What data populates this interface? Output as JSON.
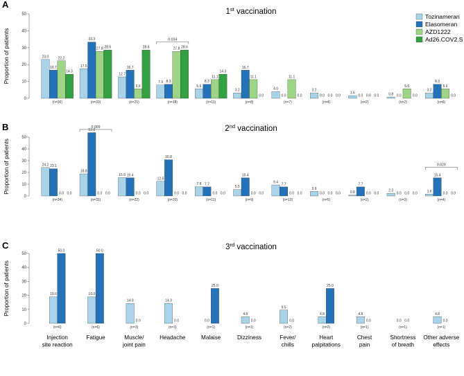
{
  "chart_data": {
    "type": "bar",
    "ylabel": "Proportion of patients",
    "ylim": [
      0,
      50
    ],
    "yticks": [
      0,
      10,
      20,
      30,
      40,
      50
    ],
    "categories": [
      [
        "Injection",
        "site reaction"
      ],
      [
        "Fatigue"
      ],
      [
        "Muscle/",
        "joint pain"
      ],
      [
        "Headache"
      ],
      [
        "Malaise"
      ],
      [
        "Dizziness"
      ],
      [
        "Fever/",
        "chills"
      ],
      [
        "Heart",
        "palpitations"
      ],
      [
        "Chest",
        "pain"
      ],
      [
        "Shortness",
        "of breath"
      ],
      [
        "Other adverse",
        "effects"
      ]
    ],
    "legend": {
      "placement": "top-right",
      "entries": [
        {
          "name": "Tozinameran",
          "color": "#a8d3e8"
        },
        {
          "name": "Elasomeran",
          "color": "#2472b8"
        },
        {
          "name": "AZD1222",
          "color": "#9dd486"
        },
        {
          "name": "Ad26.COV2.S",
          "color": "#35a042"
        }
      ]
    },
    "panels": [
      {
        "letter": "A",
        "title_number": "1",
        "title_sup": "st",
        "title_rest": " vaccination",
        "series": [
          {
            "name": "Tozinameran",
            "values": [
              23.0,
              17.5,
              12.7,
              7.9,
              5.6,
              3.2,
              4.0,
              3.2,
              1.6,
              0.8,
              3.2
            ],
            "labels": [
              "23.0",
              "17.5",
              "12.7",
              "7.9",
              "5.6",
              "3.2",
              "4.0",
              "3.2",
              "1.6",
              "0.8",
              "3.2"
            ]
          },
          {
            "name": "Elasomeran",
            "values": [
              16.7,
              33.3,
              16.7,
              8.3,
              8.3,
              16.7,
              0.0,
              0.0,
              0.0,
              0.0,
              8.3
            ],
            "labels": [
              "16.7",
              "33.3",
              "16.7",
              "8.3",
              "8.3",
              "16.7",
              "0.0",
              "0.0",
              "0.0",
              "0.0",
              "8.3"
            ]
          },
          {
            "name": "AZD1222",
            "values": [
              22.2,
              27.8,
              5.6,
              27.8,
              11.1,
              11.1,
              11.1,
              0.0,
              0.0,
              5.6,
              5.6
            ],
            "labels": [
              "22.2",
              "27.8",
              "5.6",
              "27.8",
              "11.1",
              "11.1",
              "11.1",
              "0.0",
              "0.0",
              "5.6",
              "5.6"
            ]
          },
          {
            "name": "Ad26.COV2.S",
            "values": [
              14.3,
              28.6,
              28.6,
              28.6,
              14.3,
              0.0,
              0.0,
              0.0,
              0.0,
              0.0,
              0.0
            ],
            "labels": [
              "14.3",
              "28.6",
              "28.6",
              "28.6",
              "14.3",
              "0.0",
              "0.0",
              "0.0",
              "0.0",
              "0.0",
              "0.0"
            ]
          }
        ],
        "n_labels": [
          "(n=36)",
          "(n=33)",
          "(n=21)",
          "(n=18)",
          "(n=11)",
          "(n=8)",
          "(n=7)",
          "(n=4)",
          "(n=2)",
          "(n=2)",
          "(n=6)"
        ],
        "significance": [
          {
            "category": 3,
            "from_series": 0,
            "to_series": 3,
            "level": 33.5,
            "label": "0.034"
          }
        ]
      },
      {
        "letter": "B",
        "title_number": "2",
        "title_sup": "nd",
        "title_rest": " vaccination",
        "series": [
          {
            "name": "Tozinameran",
            "values": [
              24.2,
              18.8,
              15.6,
              12.5,
              7.8,
              5.5,
              9.4,
              3.9,
              0.8,
              2.3,
              1.6
            ],
            "labels": [
              "24.2",
              "18.8",
              "15.6",
              "12.5",
              "7.8",
              "5.5",
              "9.4",
              "3.9",
              "0.8",
              "2.3",
              "1.6"
            ]
          },
          {
            "name": "Elasomeran",
            "values": [
              23.1,
              53.8,
              15.4,
              30.8,
              7.7,
              15.4,
              7.7,
              0.0,
              7.7,
              0.0,
              15.4
            ],
            "labels": [
              "23.1",
              "53.8",
              "15.4",
              "30.8",
              "7.7",
              "15.4",
              "7.7",
              "0.0",
              "7.7",
              "0.0",
              "15.4"
            ]
          },
          {
            "name": "AZD1222",
            "values": [
              0.0,
              0.0,
              0.0,
              0.0,
              0.0,
              0.0,
              0.0,
              0.0,
              0.0,
              0.0,
              0.0
            ],
            "labels": [
              "0.0",
              "0.0",
              "0.0",
              "0.0",
              "0.0",
              "0.0",
              "0.0",
              "0.0",
              "0.0",
              "0.0",
              "0.0"
            ]
          },
          {
            "name": "Ad26.COV2.S",
            "values": [
              0.0,
              0.0,
              0.0,
              0.0,
              0.0,
              0.0,
              0.0,
              0.0,
              0.0,
              0.0,
              0.0
            ],
            "labels": [
              "0.0",
              "0.0",
              "0.0",
              "0.0",
              "0.0",
              "0.0",
              "0.0",
              "0.0",
              "0.0",
              "0.0",
              "0.0"
            ]
          }
        ],
        "n_labels": [
          "(n=34)",
          "(n=31)",
          "(n=22)",
          "(n=20)",
          "(n=11)",
          "(n=9)",
          "(n=13)",
          "(n=5)",
          "(n=2)",
          "(n=3)",
          "(n=4)"
        ],
        "significance": [
          {
            "category": 1,
            "from_series": 0,
            "to_series": 3,
            "level": 56.5,
            "label": "0.009"
          },
          {
            "category": 10,
            "from_series": 0,
            "to_series": 3,
            "level": 24.5,
            "label": "0.029"
          }
        ]
      },
      {
        "letter": "C",
        "title_number": "3",
        "title_sup": "rd",
        "title_rest": " vaccination",
        "series": [
          {
            "name": "Tozinameran",
            "values": [
              19.0,
              19.0,
              14.3,
              14.3,
              0.0,
              4.8,
              9.5,
              4.8,
              4.8,
              0.0,
              4.8
            ],
            "labels": [
              "19.0",
              "19.0",
              "14.3",
              "14.3",
              "0.0",
              "4.8",
              "9.5",
              "4.8",
              "4.8",
              "0.0",
              "4.8"
            ]
          },
          {
            "name": "Elasomeran",
            "values": [
              50.0,
              50.0,
              0.0,
              0.0,
              25.0,
              0.0,
              0.0,
              25.0,
              0.0,
              0.0,
              0.0
            ],
            "labels": [
              "50.0",
              "50.0",
              "0.0",
              "0.0",
              "25.0",
              "0.0",
              "0.0",
              "25.0",
              "0.0",
              "0.0",
              "0.0"
            ]
          }
        ],
        "n_labels": [
          "(n=6)",
          "(n=6)",
          "(n=3)",
          "(n=3)",
          "(n=1)",
          "(n=1)",
          "(n=2)",
          "(n=2)",
          "(n=1)",
          "(n=1)",
          "(n=1)"
        ],
        "significance": []
      }
    ]
  }
}
